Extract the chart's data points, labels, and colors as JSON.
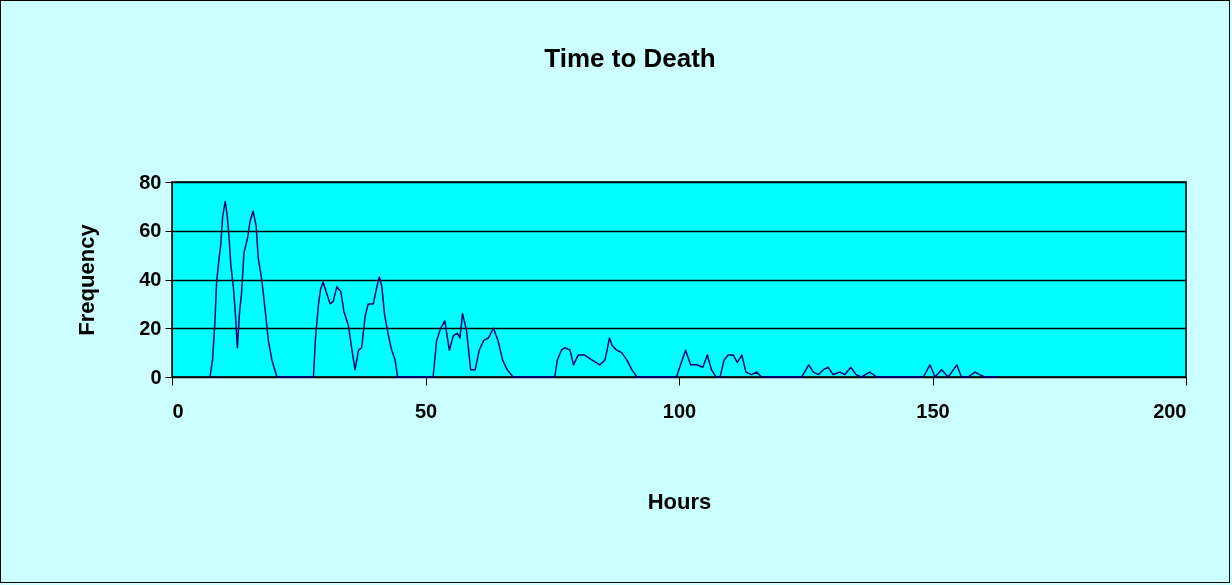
{
  "chart_data": {
    "type": "line",
    "title": "Time to Death",
    "xlabel": "Hours",
    "ylabel": "Frequency",
    "x": [
      7.5,
      8,
      8.5,
      8.8,
      9.3,
      9.6,
      10,
      10.5,
      10.9,
      11.3,
      11.6,
      12.1,
      12.5,
      12.9,
      13.3,
      13.7,
      14.2,
      14.9,
      15.4,
      16,
      16.6,
      17,
      17.7,
      18.4,
      19,
      19.7,
      20.7,
      27.9,
      28.3,
      28.9,
      29.3,
      29.8,
      30.4,
      31.2,
      31.8,
      32.5,
      33.3,
      33.9,
      34.8,
      35.5,
      36.1,
      36.8,
      37.4,
      38.1,
      38.7,
      39.7,
      40.4,
      40.9,
      41.4,
      41.9,
      42.5,
      43.2,
      44,
      44.5,
      51.5,
      52.2,
      53,
      53.8,
      54.7,
      55.5,
      56.3,
      56.8,
      57.3,
      58.1,
      58.9,
      59.8,
      60.6,
      61.5,
      62.4,
      63.4,
      64.3,
      65.2,
      66.1,
      67.3,
      75.5,
      76,
      76.8,
      77.5,
      78.5,
      79.2,
      80.1,
      81.4,
      82.8,
      84.4,
      85.4,
      86.3,
      86.8,
      87.7,
      88.7,
      89.7,
      90.7,
      91.7,
      99.5,
      100.3,
      101.3,
      102.3,
      103.5,
      104.7,
      105.6,
      106.4,
      107.3,
      108.1,
      108.9,
      109.7,
      110.7,
      111.5,
      112.4,
      113.2,
      114.3,
      115.3,
      116.3,
      124.2,
      125.6,
      126.5,
      127.5,
      128.5,
      129.4,
      130.4,
      131.7,
      132.7,
      133.9,
      134.9,
      136,
      137.6,
      139,
      148.2,
      149.5,
      150.5,
      151.8,
      153.1,
      154.8,
      155.7,
      157,
      158.4,
      159.3,
      160.3,
      163
    ],
    "series": [
      {
        "color": "#000080",
        "values": [
          0,
          7,
          24,
          39,
          49,
          54,
          66,
          72,
          66,
          56,
          46,
          37,
          26,
          12,
          26,
          34,
          51,
          57,
          64,
          68,
          62,
          49,
          40,
          27,
          15,
          7,
          0,
          0,
          16,
          30,
          36,
          39,
          35,
          30,
          31,
          37,
          35,
          27,
          21,
          11,
          3,
          11,
          12,
          25,
          30,
          30,
          37,
          41,
          37,
          26,
          19,
          12,
          7,
          0,
          0,
          15,
          20,
          23,
          11,
          17,
          18,
          16,
          26,
          19,
          3,
          3,
          11,
          15,
          16,
          20,
          15,
          7,
          3,
          0,
          0,
          7,
          11,
          12,
          11,
          5,
          9,
          9,
          7,
          5,
          7,
          16,
          13,
          11,
          10,
          7,
          3,
          0,
          0,
          5,
          11,
          5,
          5,
          4,
          9,
          3,
          0,
          0,
          7,
          9,
          9,
          6,
          9,
          2,
          1,
          2,
          0,
          0,
          5,
          2,
          1,
          3,
          4,
          1,
          2,
          1,
          4,
          1,
          0,
          2,
          0,
          0,
          5,
          0,
          3,
          0,
          5,
          0,
          0,
          2,
          1,
          0,
          0
        ]
      }
    ],
    "xlim": [
      0,
      200
    ],
    "xticks": [
      0,
      50,
      100,
      150,
      200
    ],
    "ylim": [
      0,
      80
    ],
    "yticks": [
      0,
      20,
      40,
      60,
      80
    ],
    "grid": "y",
    "marker": "none",
    "line_style": "solid"
  }
}
